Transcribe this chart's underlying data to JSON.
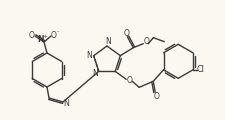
{
  "bg_color": "#faf8f0",
  "line_color": "#3a3a3a",
  "line_width": 1.0,
  "figsize": [
    2.26,
    1.2
  ],
  "dpi": 100,
  "xlim": [
    0,
    226
  ],
  "ylim": [
    0,
    120
  ]
}
